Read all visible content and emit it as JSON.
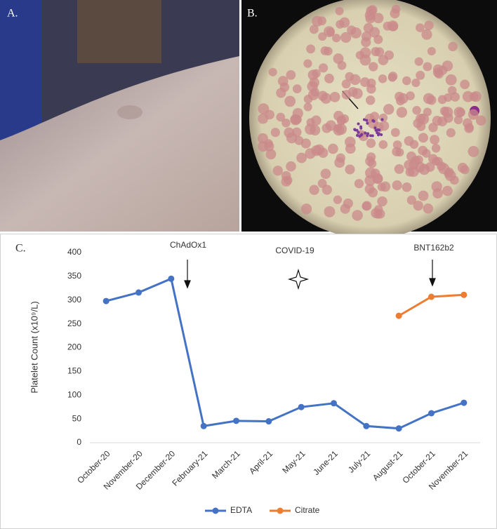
{
  "panel_labels": [
    "A.",
    "B.",
    "C."
  ],
  "chart_data": {
    "type": "line",
    "y_label": "Platelet Count (x10⁹/L)",
    "categories": [
      "October-20",
      "November-20",
      "December-20",
      "February-21",
      "March-21",
      "April-21",
      "May-21",
      "June-21",
      "July-21",
      "August-21",
      "October-21",
      "November-21"
    ],
    "series": [
      {
        "name": "EDTA",
        "color": "#4472c4",
        "values": [
          298,
          316,
          345,
          35,
          46,
          45,
          75,
          83,
          35,
          30,
          62,
          84
        ]
      },
      {
        "name": "Citrate",
        "color": "#ed7d31",
        "values": [
          null,
          null,
          null,
          null,
          null,
          null,
          null,
          null,
          null,
          267,
          307,
          311
        ]
      }
    ],
    "annotations": [
      "ChAdOx1",
      "COVID-19",
      "BNT162b2"
    ],
    "ylim": [
      0,
      400
    ],
    "yticks": [
      0,
      50,
      100,
      150,
      200,
      250,
      300,
      350,
      400
    ],
    "legend": "bottom"
  }
}
